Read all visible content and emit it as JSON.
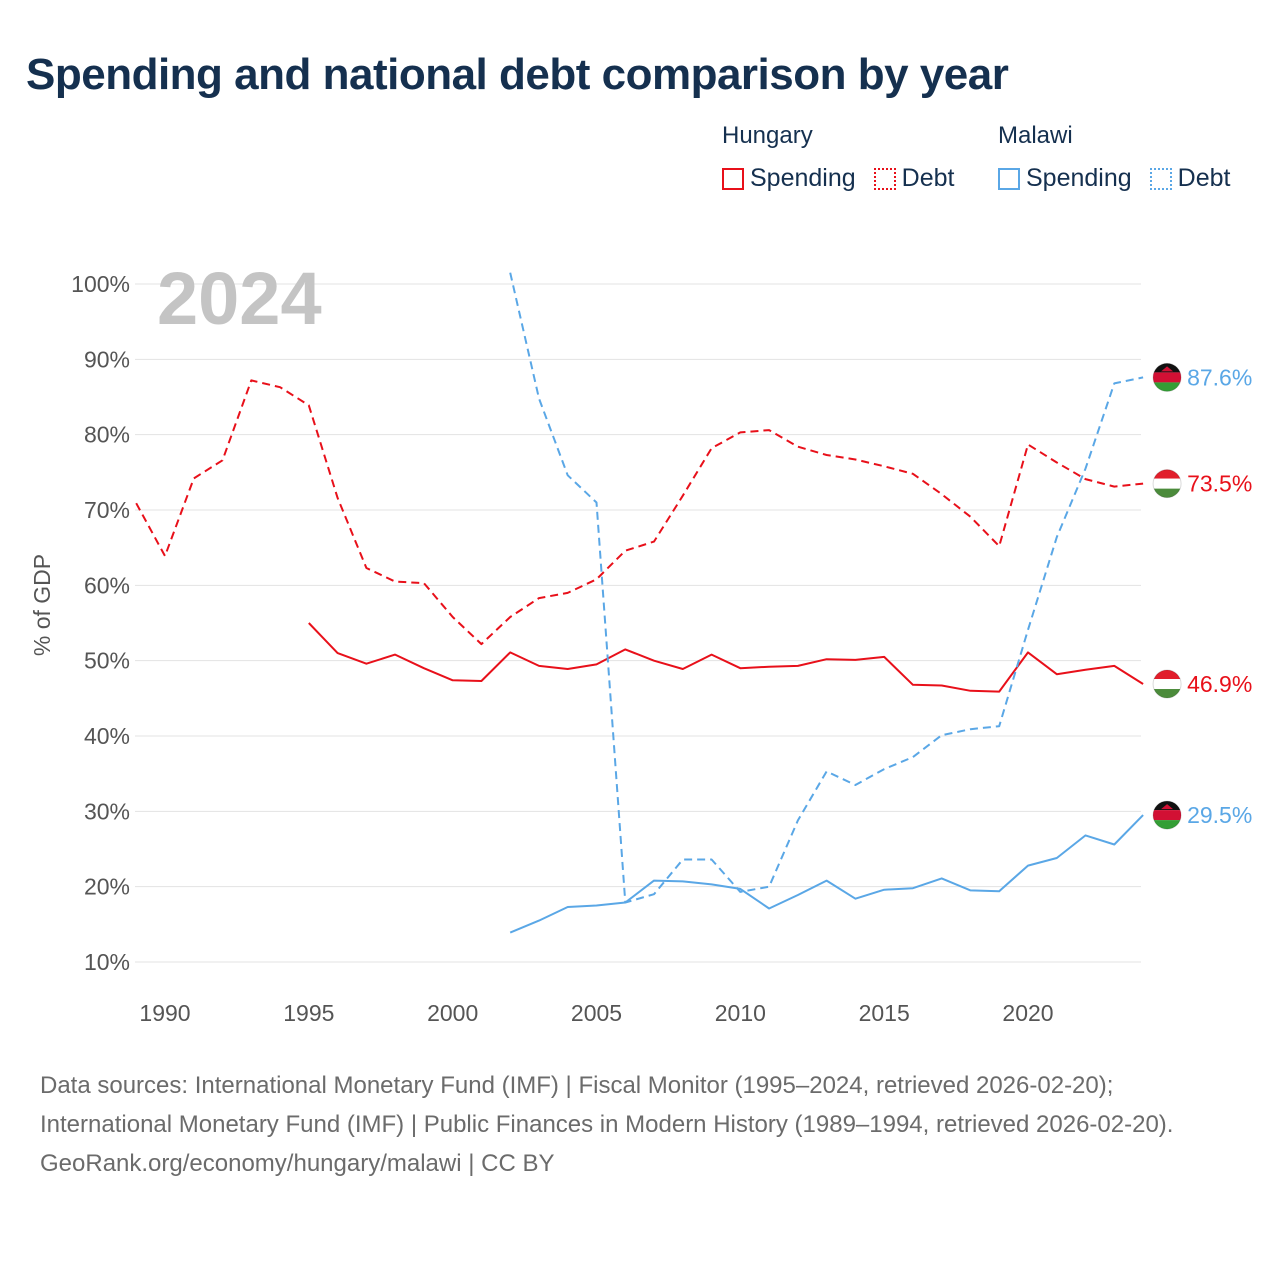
{
  "title": "Spending and national debt comparison by year",
  "legend": [
    {
      "country": "Hungary",
      "color": "#e8101a",
      "items": [
        {
          "label": "Spending",
          "style": "solid"
        },
        {
          "label": "Debt",
          "style": "dotted"
        }
      ]
    },
    {
      "country": "Malawi",
      "color": "#5aa7e6",
      "items": [
        {
          "label": "Spending",
          "style": "solid"
        },
        {
          "label": "Debt",
          "style": "dotted"
        }
      ]
    }
  ],
  "chart_data": {
    "type": "line",
    "year_label": "2024",
    "ylabel": "% of GDP",
    "xlim": [
      1989,
      2024
    ],
    "ylim": [
      8,
      102
    ],
    "x_ticks": [
      1990,
      1995,
      2000,
      2005,
      2010,
      2015,
      2020
    ],
    "y_ticks": [
      10,
      20,
      30,
      40,
      50,
      60,
      70,
      80,
      90,
      100
    ],
    "y_tick_labels": [
      "10%",
      "20%",
      "30%",
      "40%",
      "50%",
      "60%",
      "70%",
      "80%",
      "90%",
      "100%"
    ],
    "grid": true,
    "series": [
      {
        "name": "Hungary Debt",
        "country": "Hungary",
        "kind": "Debt",
        "color": "#e8101a",
        "dash": "dashed",
        "end_label": "73.5%",
        "flag": "hungary",
        "x": [
          1989,
          1990,
          1991,
          1992,
          1993,
          1994,
          1995,
          1996,
          1997,
          1998,
          1999,
          2000,
          2001,
          2002,
          2003,
          2004,
          2005,
          2006,
          2007,
          2008,
          2009,
          2010,
          2011,
          2012,
          2013,
          2014,
          2015,
          2016,
          2017,
          2018,
          2019,
          2020,
          2021,
          2022,
          2023,
          2024
        ],
        "y": [
          70.9,
          63.9,
          74.2,
          76.6,
          87.2,
          86.3,
          83.9,
          71.6,
          62.3,
          60.5,
          60.3,
          55.8,
          52.2,
          55.8,
          58.3,
          59.0,
          60.8,
          64.6,
          65.8,
          71.9,
          78.2,
          80.3,
          80.6,
          78.4,
          77.3,
          76.7,
          75.8,
          74.8,
          72.1,
          69.1,
          65.2,
          78.7,
          76.3,
          74.1,
          73.1,
          73.5
        ]
      },
      {
        "name": "Hungary Spending",
        "country": "Hungary",
        "kind": "Spending",
        "color": "#e8101a",
        "dash": "solid",
        "end_label": "46.9%",
        "flag": "hungary",
        "x": [
          1995,
          1996,
          1997,
          1998,
          1999,
          2000,
          2001,
          2002,
          2003,
          2004,
          2005,
          2006,
          2007,
          2008,
          2009,
          2010,
          2011,
          2012,
          2013,
          2014,
          2015,
          2016,
          2017,
          2018,
          2019,
          2020,
          2021,
          2022,
          2023,
          2024
        ],
        "y": [
          55.0,
          51.0,
          49.6,
          50.8,
          49.0,
          47.4,
          47.3,
          51.1,
          49.3,
          48.9,
          49.5,
          51.5,
          50.0,
          48.9,
          50.8,
          49.0,
          49.2,
          49.3,
          50.2,
          50.1,
          50.5,
          46.8,
          46.7,
          46.0,
          45.9,
          51.1,
          48.2,
          48.8,
          49.3,
          46.9
        ]
      },
      {
        "name": "Malawi Debt",
        "country": "Malawi",
        "kind": "Debt",
        "color": "#5aa7e6",
        "dash": "dashed",
        "end_label": "87.6%",
        "flag": "malawi",
        "x": [
          2002,
          2003,
          2004,
          2005,
          2006,
          2007,
          2008,
          2009,
          2010,
          2011,
          2012,
          2013,
          2014,
          2015,
          2016,
          2017,
          2018,
          2019,
          2020,
          2021,
          2022,
          2023,
          2024
        ],
        "y": [
          101.5,
          84.8,
          74.6,
          71.0,
          17.9,
          19.0,
          23.6,
          23.6,
          19.3,
          20.0,
          28.8,
          35.3,
          33.5,
          35.6,
          37.2,
          40.1,
          40.9,
          41.3,
          54.1,
          66.4,
          75.5,
          86.8,
          87.6
        ]
      },
      {
        "name": "Malawi Spending",
        "country": "Malawi",
        "kind": "Spending",
        "color": "#5aa7e6",
        "dash": "solid",
        "end_label": "29.5%",
        "flag": "malawi",
        "x": [
          2002,
          2003,
          2004,
          2005,
          2006,
          2007,
          2008,
          2009,
          2010,
          2011,
          2012,
          2013,
          2014,
          2015,
          2016,
          2017,
          2018,
          2019,
          2020,
          2021,
          2022,
          2023,
          2024
        ],
        "y": [
          13.9,
          15.5,
          17.3,
          17.5,
          17.9,
          20.8,
          20.7,
          20.3,
          19.7,
          17.1,
          18.9,
          20.8,
          18.4,
          19.6,
          19.8,
          21.1,
          19.5,
          19.4,
          22.8,
          23.8,
          26.8,
          25.6,
          29.5
        ]
      }
    ]
  },
  "footer": {
    "sources": "Data sources: International Monetary Fund (IMF) | Fiscal Monitor (1995–2024, retrieved 2026-02-20); International Monetary Fund (IMF) | Public Finances in Modern History (1989–1994, retrieved 2026-02-20).",
    "credit": "GeoRank.org/economy/hungary/malawi | CC BY"
  }
}
